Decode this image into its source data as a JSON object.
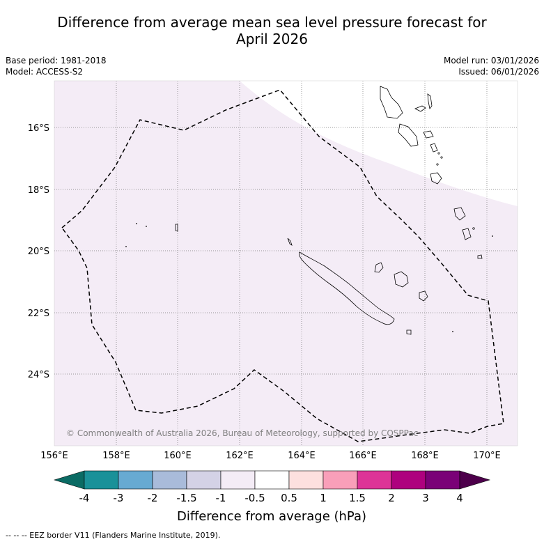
{
  "title_line1": "Difference from average mean sea level pressure forecast for",
  "title_line2": "April 2026",
  "base_period": "Base period: 1981-2018",
  "model": "Model: ACCESS-S2",
  "model_run": "Model run: 03/01/2026",
  "issued": "Issued: 06/01/2026",
  "copyright": "© Commonwealth of Australia 2026, Bureau of Meteorology, supported by COSPPac",
  "lon_labels": [
    "156°E",
    "158°E",
    "160°E",
    "162°E",
    "164°E",
    "166°E",
    "168°E",
    "170°E"
  ],
  "lat_labels": [
    "16°S",
    "18°S",
    "20°S",
    "22°S",
    "24°S"
  ],
  "colorbar": {
    "label": "Difference from average (hPa)",
    "ticks": [
      "-4",
      "-3",
      "-2",
      "-1.5",
      "-1",
      "-0.5",
      "0.5",
      "1",
      "1.5",
      "2",
      "3",
      "4"
    ],
    "colors": [
      "#1a9199",
      "#67aad2",
      "#a9bbda",
      "#d4d2e6",
      "#f4ecf6",
      "#ffffff",
      "#fde0df",
      "#f99fb9",
      "#dd3497",
      "#ae017e",
      "#7a0177"
    ],
    "under_color": "#0b6b64",
    "over_color": "#4d004b"
  },
  "footnote": "-- -- -- EEZ border V11 (Flanders Marine Institute, 2019)."
}
